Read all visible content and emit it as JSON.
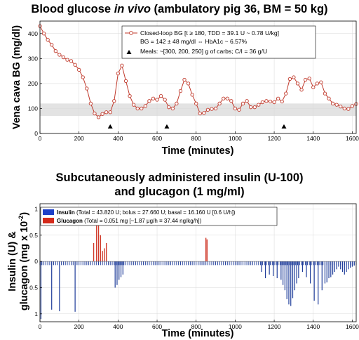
{
  "colors": {
    "bg_line": "#c0392b",
    "band": "#e3e3e3",
    "insulin": "#1f3d9a",
    "glucagon": "#d03a2a",
    "insulin_legend": "#1e40c8",
    "glucagon_legend": "#d42a1a"
  },
  "chart_data": [
    {
      "type": "line",
      "title_parts": [
        "Blood glucose ",
        "in vivo",
        " (ambulatory pig 36, BM = 50 kg)"
      ],
      "xlabel": "Time (minutes)",
      "ylabel": "Vena cava BG (mg/dl)",
      "xlim": [
        0,
        1620
      ],
      "ylim": [
        0,
        450
      ],
      "xticks": [
        0,
        200,
        400,
        600,
        800,
        1000,
        1200,
        1400,
        1600
      ],
      "yticks": [
        0,
        100,
        200,
        300,
        400
      ],
      "grid": true,
      "legend_position": "top-right",
      "target_band": [
        70,
        120
      ],
      "legend": {
        "line1": "Closed-loop BG [t ≥ 180, TDD = 39.1 U ~ 0.78 U/kg]",
        "line2": "BG = 142 ± 48 mg/dl ⇔ HbA1c ~ 6.57%",
        "line3": "Meals: ~[300, 200, 250] g of carbs; C/I = 36 g/U"
      },
      "meals_x": [
        360,
        650,
        1250
      ],
      "series": [
        {
          "name": "Closed-loop BG",
          "x": [
            0,
            20,
            40,
            60,
            80,
            100,
            120,
            140,
            160,
            180,
            200,
            220,
            240,
            260,
            280,
            300,
            320,
            340,
            360,
            380,
            400,
            420,
            440,
            460,
            480,
            500,
            520,
            540,
            560,
            580,
            600,
            620,
            640,
            660,
            680,
            700,
            720,
            740,
            760,
            780,
            800,
            820,
            840,
            860,
            880,
            900,
            920,
            940,
            960,
            980,
            1000,
            1020,
            1040,
            1060,
            1080,
            1100,
            1120,
            1140,
            1160,
            1180,
            1200,
            1220,
            1240,
            1260,
            1280,
            1300,
            1320,
            1340,
            1360,
            1380,
            1400,
            1420,
            1440,
            1460,
            1480,
            1500,
            1520,
            1540,
            1560,
            1580,
            1600,
            1620
          ],
          "y": [
            430,
            400,
            375,
            355,
            330,
            315,
            305,
            295,
            290,
            275,
            255,
            225,
            180,
            120,
            80,
            65,
            78,
            85,
            85,
            130,
            240,
            272,
            210,
            150,
            115,
            100,
            100,
            110,
            130,
            140,
            135,
            150,
            135,
            105,
            100,
            120,
            170,
            215,
            200,
            155,
            120,
            80,
            82,
            95,
            98,
            100,
            120,
            140,
            140,
            130,
            100,
            95,
            120,
            130,
            105,
            105,
            115,
            125,
            130,
            128,
            125,
            140,
            128,
            160,
            218,
            225,
            200,
            175,
            215,
            220,
            185,
            200,
            205,
            160,
            140,
            120,
            115,
            108,
            100,
            98,
            110,
            118
          ]
        }
      ]
    },
    {
      "type": "bar",
      "title_line1": "Subcutaneously administered insulin (U-100)",
      "title_line2": "and glucagon (1 mg/ml)",
      "xlabel": "Time (minutes)",
      "ylabel_line1": "Insulin (U) &",
      "ylabel_line2": "glucagon (mg x 10",
      "ylabel_sup": "-2",
      "ylabel_close": ")",
      "xlim": [
        0,
        1620
      ],
      "ylim": [
        -1.15,
        1.1
      ],
      "xticks": [
        0,
        200,
        400,
        600,
        800,
        1000,
        1200,
        1400,
        1600
      ],
      "yticks": [
        -1,
        -0.5,
        0,
        0.5,
        1
      ],
      "ytick_labels": [
        "1",
        "0.5",
        "0",
        "0.5",
        "1"
      ],
      "grid": true,
      "legend_position": "top-left",
      "legend": {
        "insulin_name": "Insulin",
        "insulin_detail": " (Total = 43.820 U; bolus = 27.660 U; basal = 16.160 U [0.6 U/h])",
        "glucagon_name": "Glucagon",
        "glucagon_detail": " (Total = 0.051 mg [~1.87 μg/h ≡ 37.44 ng/kg/h])"
      },
      "series": [
        {
          "name": "Insulin",
          "x": [
            5,
            60,
            100,
            180,
            385,
            395,
            405,
            415,
            425,
            1135,
            1155,
            1175,
            1195,
            1215,
            1235,
            1245,
            1255,
            1265,
            1275,
            1285,
            1295,
            1305,
            1315,
            1325,
            1345,
            1365,
            1385,
            1405,
            1425,
            1445,
            1460,
            1470,
            1480,
            1490,
            1500,
            1510,
            1520,
            1530,
            1540,
            1550,
            1560,
            1570,
            1580,
            1590,
            1600,
            1610
          ],
          "values": [
            -1.1,
            -0.92,
            -0.95,
            -0.96,
            -0.5,
            -0.45,
            -0.35,
            -0.3,
            -0.25,
            -0.2,
            -0.32,
            -0.25,
            -0.28,
            -0.32,
            -0.35,
            -0.45,
            -0.55,
            -0.72,
            -0.82,
            -0.85,
            -0.7,
            -0.55,
            -0.42,
            -0.32,
            -0.2,
            -0.3,
            -0.42,
            -0.75,
            -0.82,
            -0.55,
            -0.42,
            -0.4,
            -0.32,
            -0.3,
            -0.25,
            -0.2,
            -0.15,
            -0.1,
            -0.15,
            -0.2,
            -0.25,
            -0.2,
            -0.15,
            -0.12,
            -0.1,
            -0.08
          ]
        },
        {
          "name": "Glucagon",
          "x": [
            275,
            290,
            300,
            310,
            320,
            330,
            340,
            850,
            856
          ],
          "values": [
            0.35,
            0.85,
            0.82,
            0.5,
            0.2,
            0.25,
            0.35,
            0.45,
            0.42
          ]
        }
      ]
    }
  ]
}
